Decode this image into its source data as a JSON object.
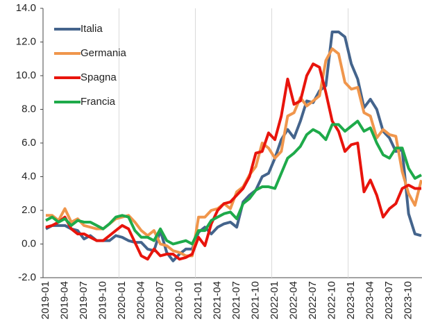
{
  "chart_data": {
    "type": "line",
    "x": [
      "2019-01",
      null,
      null,
      "2019-04",
      null,
      null,
      "2019-07",
      null,
      null,
      "2019-10",
      null,
      null,
      "2020-01",
      null,
      null,
      "2020-04",
      null,
      null,
      "2020-07",
      null,
      null,
      "2020-10",
      null,
      null,
      "2021-01",
      null,
      null,
      "2021-04",
      null,
      null,
      "2021-07",
      null,
      null,
      "2021-10",
      null,
      null,
      "2022-01",
      null,
      null,
      "2022-04",
      null,
      null,
      "2022-07",
      null,
      null,
      "2022-10",
      null,
      null,
      "2023-01",
      null,
      null,
      "2023-04",
      null,
      null,
      "2023-07",
      null,
      null,
      "2023-10",
      null,
      null
    ],
    "series": [
      {
        "name": "Italia",
        "color": "#44648c",
        "values": [
          0.9,
          1.1,
          1.1,
          1.1,
          0.9,
          0.8,
          0.3,
          0.5,
          0.2,
          0.2,
          0.2,
          0.5,
          0.4,
          0.2,
          0.1,
          0.1,
          -0.3,
          -0.4,
          0.8,
          -0.5,
          -1.0,
          -0.6,
          -0.3,
          -0.3,
          0.7,
          1.0,
          0.6,
          1.0,
          1.2,
          1.3,
          1.0,
          2.5,
          2.9,
          3.2,
          4.0,
          4.2,
          5.1,
          6.2,
          6.8,
          6.3,
          7.3,
          8.5,
          8.4,
          9.1,
          9.4,
          12.6,
          12.6,
          12.3,
          10.7,
          9.8,
          8.1,
          8.6,
          8.0,
          6.7,
          6.3,
          5.5,
          5.6,
          1.8,
          0.6,
          0.5
        ]
      },
      {
        "name": "Germania",
        "color": "#f0964c",
        "values": [
          1.7,
          1.7,
          1.4,
          2.1,
          1.3,
          1.5,
          1.1,
          1.0,
          0.9,
          0.9,
          1.2,
          1.5,
          1.6,
          1.7,
          1.3,
          0.8,
          0.5,
          0.8,
          0.0,
          -0.1,
          -0.4,
          -0.5,
          -0.7,
          -0.7,
          1.6,
          1.6,
          2.0,
          2.1,
          2.4,
          2.1,
          3.1,
          3.4,
          4.1,
          4.6,
          6.0,
          5.7,
          5.1,
          5.5,
          7.6,
          7.8,
          8.7,
          8.2,
          8.5,
          8.8,
          10.9,
          11.6,
          11.3,
          9.6,
          9.2,
          9.3,
          7.8,
          7.6,
          6.3,
          6.8,
          6.5,
          6.4,
          4.3,
          3.0,
          2.3,
          3.8
        ]
      },
      {
        "name": "Spagna",
        "color": "#e8140c",
        "values": [
          1.0,
          1.1,
          1.3,
          1.6,
          0.9,
          0.6,
          0.6,
          0.4,
          0.2,
          0.2,
          0.5,
          0.8,
          1.1,
          0.9,
          0.1,
          -0.7,
          -0.9,
          -0.3,
          -0.7,
          -0.6,
          -0.6,
          -0.9,
          -0.8,
          -0.6,
          0.4,
          -0.1,
          1.2,
          2.0,
          2.4,
          2.5,
          2.9,
          3.3,
          4.0,
          5.4,
          5.5,
          6.6,
          6.2,
          7.6,
          9.8,
          8.3,
          8.5,
          10.0,
          10.7,
          10.5,
          9.0,
          7.3,
          6.7,
          5.5,
          5.9,
          6.0,
          3.1,
          3.8,
          2.9,
          1.6,
          2.1,
          2.4,
          3.3,
          3.5,
          3.3,
          3.3
        ]
      },
      {
        "name": "Francia",
        "color": "#1eaa4a",
        "values": [
          1.4,
          1.6,
          1.3,
          1.5,
          1.1,
          1.4,
          1.3,
          1.3,
          1.1,
          0.9,
          1.2,
          1.6,
          1.7,
          1.6,
          0.8,
          0.4,
          0.4,
          0.2,
          0.9,
          0.2,
          0.0,
          0.1,
          0.2,
          0.0,
          0.8,
          0.8,
          1.4,
          1.6,
          1.8,
          1.9,
          1.5,
          2.4,
          2.7,
          3.2,
          3.4,
          3.4,
          3.3,
          4.2,
          5.1,
          5.4,
          5.8,
          6.5,
          6.8,
          6.6,
          6.2,
          7.1,
          7.1,
          6.7,
          7.0,
          7.3,
          6.7,
          6.9,
          6.0,
          5.3,
          5.1,
          5.7,
          5.7,
          4.5,
          3.9,
          4.1
        ]
      }
    ],
    "ylim": [
      -2,
      14
    ],
    "yticks": [
      {
        "value": -2,
        "label": "-2.0"
      },
      {
        "value": 0,
        "label": "0.0"
      },
      {
        "value": 2,
        "label": "2.0"
      },
      {
        "value": 4,
        "label": "4.0"
      },
      {
        "value": 6,
        "label": "6.0"
      },
      {
        "value": 8,
        "label": "8.0"
      },
      {
        "value": 10,
        "label": "10.0"
      },
      {
        "value": 12,
        "label": "12.0"
      },
      {
        "value": 14,
        "label": "14.0"
      }
    ],
    "legend": "upper left"
  }
}
